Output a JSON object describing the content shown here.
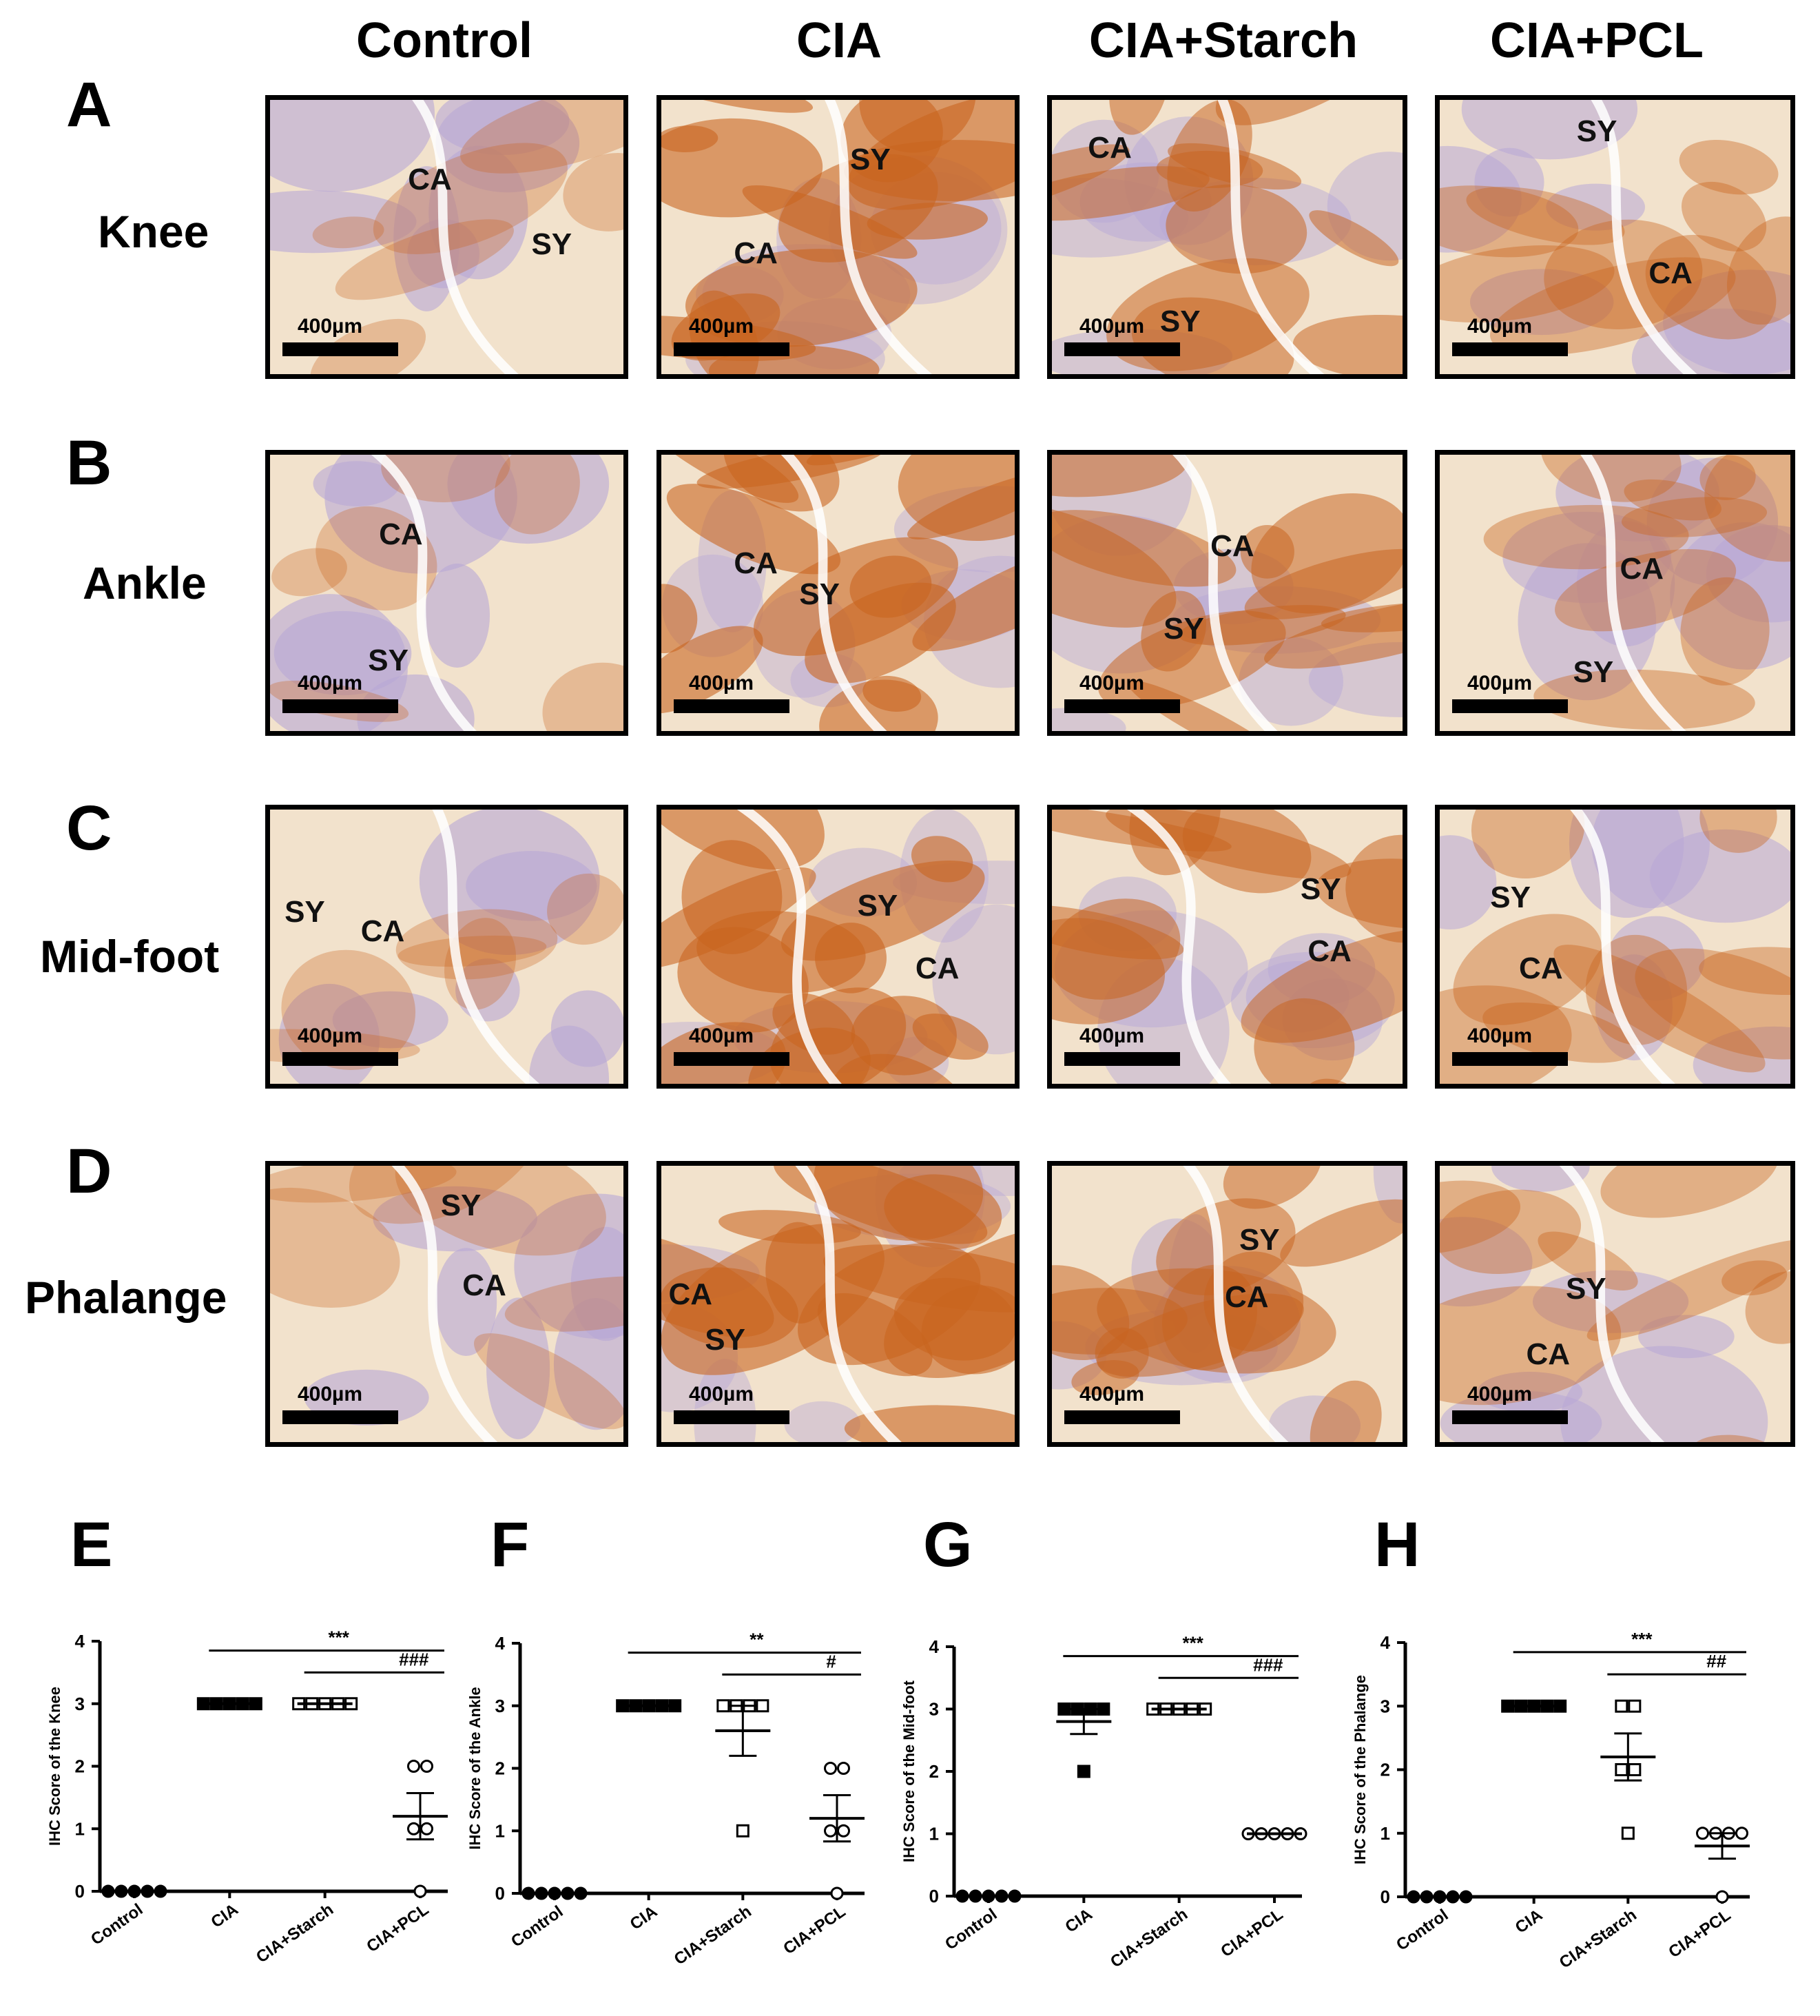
{
  "columns": [
    "Control",
    "CIA",
    "CIA+Starch",
    "CIA+PCL"
  ],
  "rows": [
    {
      "letter": "A",
      "name": "Knee"
    },
    {
      "letter": "B",
      "name": "Ankle"
    },
    {
      "letter": "C",
      "name": "Mid-foot"
    },
    {
      "letter": "D",
      "name": "Phalange"
    }
  ],
  "image_labels": {
    "ca": "CA",
    "sy": "SY",
    "scale": "400µm"
  },
  "stain_colors": {
    "hematoxylin": "#b7a7d6",
    "dab": "#c8641e",
    "background": "#f2e2cc"
  },
  "chart_data": [
    {
      "panel": "E",
      "type": "scatter",
      "categories": [
        "Control",
        "CIA",
        "CIA+Starch",
        "CIA+PCL"
      ],
      "ylabel": "IHC Score of the Knee",
      "ylim": [
        0,
        4
      ],
      "yticks": [
        0,
        1,
        2,
        3,
        4
      ],
      "points": [
        [
          0,
          0,
          0,
          0,
          0
        ],
        [
          3,
          3,
          3,
          3,
          3
        ],
        [
          3,
          3,
          3,
          3,
          3
        ],
        [
          2,
          2,
          1,
          1,
          0
        ]
      ],
      "means": [
        0,
        3,
        3,
        1.2
      ],
      "sem": [
        0,
        0,
        0,
        0.37
      ],
      "markers": [
        "filled-circle",
        "filled-square",
        "open-square",
        "open-circle"
      ],
      "annotations": [
        {
          "from": "CIA",
          "to": "CIA+PCL",
          "label": "***"
        },
        {
          "from": "CIA+Starch",
          "to": "CIA+PCL",
          "label": "###"
        }
      ]
    },
    {
      "panel": "F",
      "type": "scatter",
      "categories": [
        "Control",
        "CIA",
        "CIA+Starch",
        "CIA+PCL"
      ],
      "ylabel": "IHC Score of the Ankle",
      "ylim": [
        0,
        4
      ],
      "yticks": [
        0,
        1,
        2,
        3,
        4
      ],
      "points": [
        [
          0,
          0,
          0,
          0,
          0
        ],
        [
          3,
          3,
          3,
          3,
          3
        ],
        [
          3,
          3,
          3,
          3,
          1
        ],
        [
          2,
          2,
          1,
          1,
          0
        ]
      ],
      "means": [
        0,
        3,
        2.6,
        1.2
      ],
      "sem": [
        0,
        0,
        0.4,
        0.37
      ],
      "markers": [
        "filled-circle",
        "filled-square",
        "open-square",
        "open-circle"
      ],
      "annotations": [
        {
          "from": "CIA",
          "to": "CIA+PCL",
          "label": "**"
        },
        {
          "from": "CIA+Starch",
          "to": "CIA+PCL",
          "label": "#"
        }
      ]
    },
    {
      "panel": "G",
      "type": "scatter",
      "categories": [
        "Control",
        "CIA",
        "CIA+Starch",
        "CIA+PCL"
      ],
      "ylabel": "IHC Score of the Mid-foot",
      "ylim": [
        0,
        4
      ],
      "yticks": [
        0,
        1,
        2,
        3,
        4
      ],
      "points": [
        [
          0,
          0,
          0,
          0,
          0
        ],
        [
          3,
          3,
          3,
          3,
          2
        ],
        [
          3,
          3,
          3,
          3,
          3
        ],
        [
          1,
          1,
          1,
          1,
          1
        ]
      ],
      "means": [
        0,
        2.8,
        3,
        1
      ],
      "sem": [
        0,
        0.2,
        0,
        0
      ],
      "markers": [
        "filled-circle",
        "filled-square",
        "open-square",
        "open-circle"
      ],
      "annotations": [
        {
          "from": "CIA",
          "to": "CIA+PCL",
          "label": "***"
        },
        {
          "from": "CIA+Starch",
          "to": "CIA+PCL",
          "label": "###"
        }
      ]
    },
    {
      "panel": "H",
      "type": "scatter",
      "categories": [
        "Control",
        "CIA",
        "CIA+Starch",
        "CIA+PCL"
      ],
      "ylabel": "IHC Score of the Phalange",
      "ylim": [
        0,
        4
      ],
      "yticks": [
        0,
        1,
        2,
        3,
        4
      ],
      "points": [
        [
          0,
          0,
          0,
          0,
          0
        ],
        [
          3,
          3,
          3,
          3,
          3
        ],
        [
          3,
          3,
          2,
          2,
          1
        ],
        [
          1,
          1,
          1,
          1,
          0
        ]
      ],
      "means": [
        0,
        3,
        2.2,
        0.8
      ],
      "sem": [
        0,
        0,
        0.37,
        0.2
      ],
      "markers": [
        "filled-circle",
        "filled-square",
        "open-square",
        "open-circle"
      ],
      "annotations": [
        {
          "from": "CIA",
          "to": "CIA+PCL",
          "label": "***"
        },
        {
          "from": "CIA+Starch",
          "to": "CIA+PCL",
          "label": "##"
        }
      ]
    }
  ]
}
